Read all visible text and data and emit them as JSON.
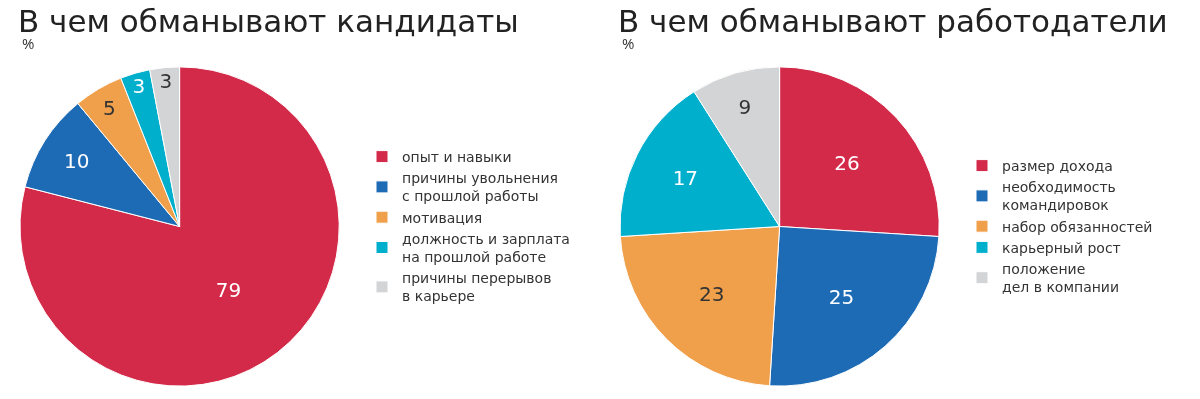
{
  "chart_data": [
    {
      "type": "pie",
      "title": "В чем обманывают кандидаты",
      "subtitle": "%",
      "categories": [
        "опыт и навыки",
        "причины увольнения с прошлой работы",
        "мотивация",
        "должность и зарплата на прошлой работе",
        "причины перерывов в карьере"
      ],
      "values": [
        79,
        10,
        5,
        3,
        3
      ],
      "colors": [
        "#d42a4a",
        "#1e6bb5",
        "#f0a04b",
        "#00afcc",
        "#d3d4d6"
      ],
      "data_labels": true,
      "legend": "right"
    },
    {
      "type": "pie",
      "title": "В чем обманывают работодатели",
      "subtitle": "%",
      "categories": [
        "размер дохода",
        "необходимость командировок",
        "набор обязанностей",
        "карьерный рост",
        "положение дел в компании"
      ],
      "values": [
        26,
        25,
        23,
        17,
        9
      ],
      "colors": [
        "#d42a4a",
        "#1e6bb5",
        "#f0a04b",
        "#00afcc",
        "#d3d4d6"
      ],
      "data_labels": true,
      "legend": "right"
    }
  ]
}
